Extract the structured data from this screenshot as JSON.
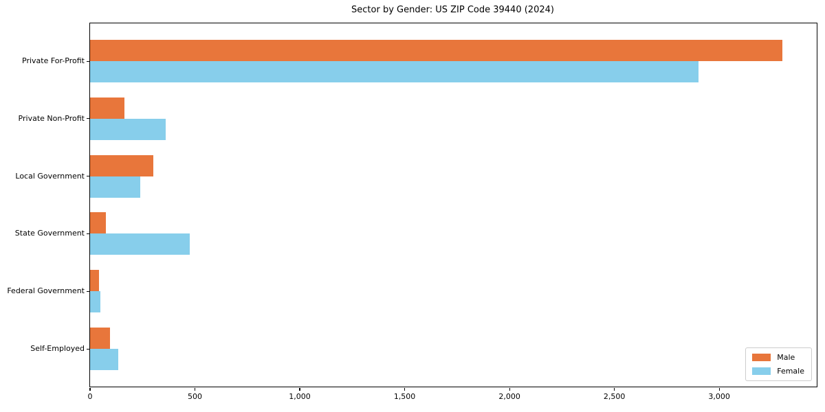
{
  "chart_data": {
    "type": "bar",
    "orientation": "horizontal",
    "title": "Sector by Gender: US ZIP Code 39440 (2024)",
    "xlabel": "",
    "ylabel": "",
    "categories": [
      "Private For-Profit",
      "Private Non-Profit",
      "Local Government",
      "State Government",
      "Federal Government",
      "Self-Employed"
    ],
    "series": [
      {
        "name": "Male",
        "color": "#e8763b",
        "values": [
          3300,
          165,
          300,
          75,
          42,
          95
        ]
      },
      {
        "name": "Female",
        "color": "#87ceeb",
        "values": [
          2900,
          360,
          240,
          475,
          48,
          135
        ]
      }
    ],
    "xlim": [
      0,
      3465
    ],
    "xticks": [
      0,
      500,
      1000,
      1500,
      2000,
      2500,
      3000
    ],
    "xtick_labels": [
      "0",
      "500",
      "1,000",
      "1,500",
      "2,000",
      "2,500",
      "3,000"
    ],
    "grid": false,
    "legend": {
      "position": "lower right",
      "entries": [
        "Male",
        "Female"
      ]
    },
    "colors": {
      "axis": "#000000",
      "legend_border": "#cccccc",
      "background": "#ffffff"
    }
  }
}
